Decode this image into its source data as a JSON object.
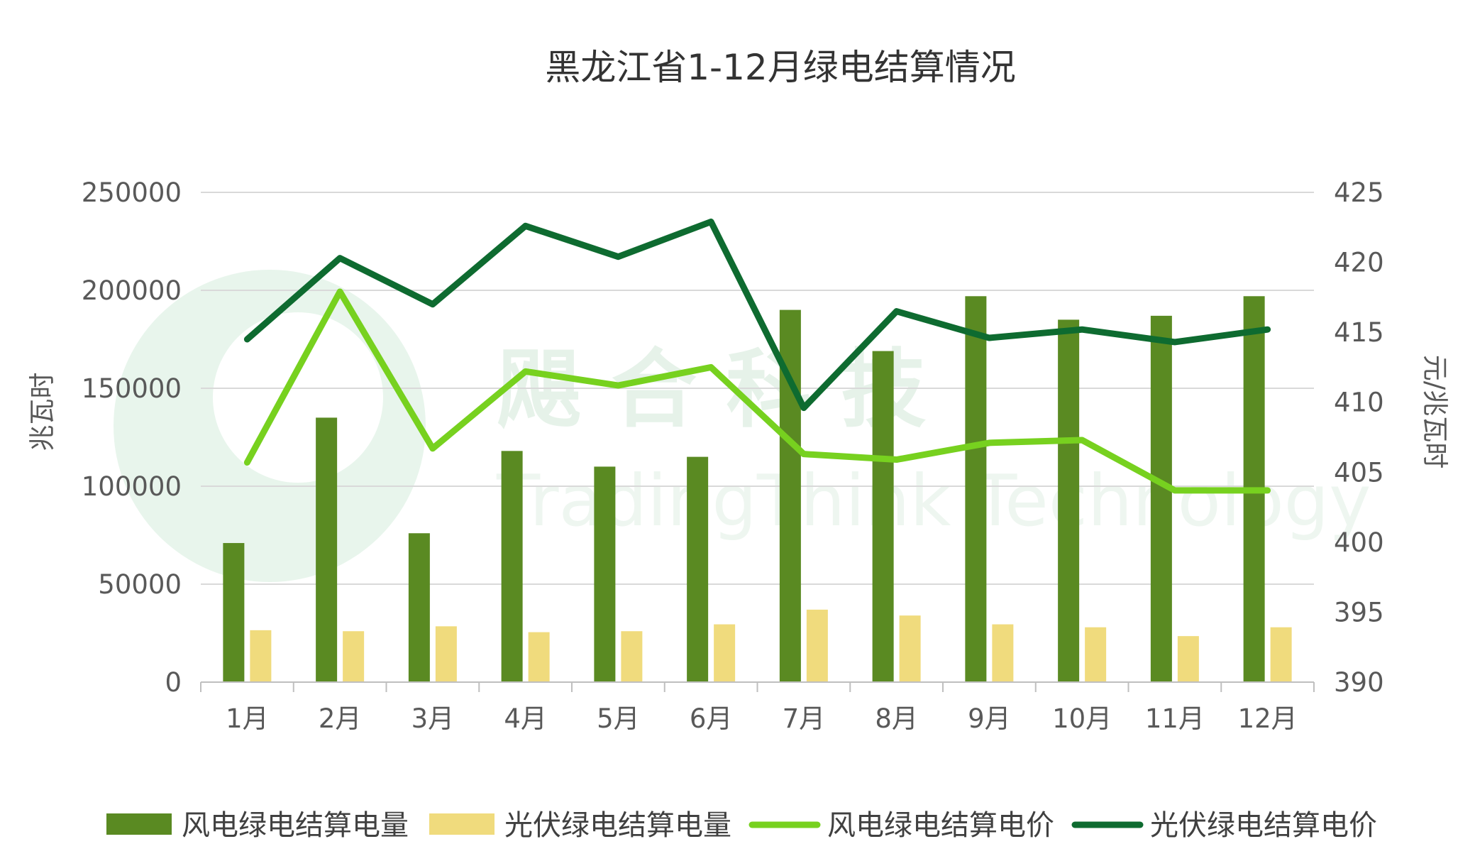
{
  "chart_data": {
    "type": "bar",
    "title": "黑龙江省1-12月绿电结算情况",
    "categories": [
      "1月",
      "2月",
      "3月",
      "4月",
      "5月",
      "6月",
      "7月",
      "8月",
      "9月",
      "10月",
      "11月",
      "12月"
    ],
    "y_left_label": "兆瓦时",
    "y_right_label": "元/兆瓦时",
    "y_left_range": [
      0,
      250000
    ],
    "y_left_ticks": [
      "0",
      "50000",
      "100000",
      "150000",
      "200000",
      "250000"
    ],
    "y_right_range": [
      390,
      425
    ],
    "y_right_ticks": [
      "390",
      "395",
      "400",
      "405",
      "410",
      "415",
      "420",
      "425"
    ],
    "grid": true,
    "legend_position": "bottom",
    "series": [
      {
        "name": "风电绿电结算电量",
        "kind": "bar",
        "axis": "left",
        "color": "#5a8a22",
        "values": [
          71000,
          135000,
          76000,
          118000,
          110000,
          115000,
          190000,
          169000,
          197000,
          185000,
          187000,
          197000
        ]
      },
      {
        "name": "光伏绿电结算电量",
        "kind": "bar",
        "axis": "left",
        "color": "#f0db7d",
        "values": [
          26500,
          26000,
          28500,
          25500,
          26000,
          29500,
          37000,
          34000,
          29500,
          28000,
          23500,
          28000
        ]
      },
      {
        "name": "风电绿电结算电价",
        "kind": "line",
        "axis": "right",
        "color": "#77d11f",
        "values": [
          405.7,
          417.9,
          406.7,
          412.2,
          411.2,
          412.5,
          406.3,
          405.9,
          407.1,
          407.3,
          403.7,
          403.7
        ]
      },
      {
        "name": "光伏绿电结算电价",
        "kind": "line",
        "axis": "right",
        "color": "#0e6b30",
        "values": [
          414.5,
          420.3,
          417.0,
          422.6,
          420.4,
          422.9,
          409.6,
          416.5,
          414.6,
          415.2,
          414.3,
          415.2
        ]
      }
    ]
  },
  "watermark": {
    "text_cn": "飓 合 科 技",
    "text_en": "TradingThink Technology"
  }
}
